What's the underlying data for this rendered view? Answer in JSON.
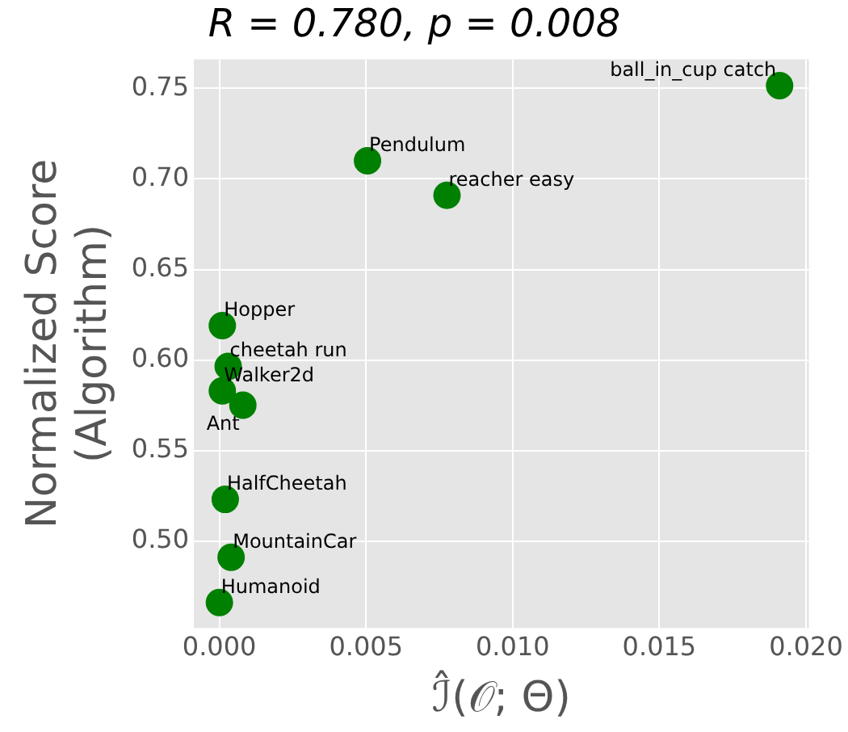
{
  "chart_data": {
    "type": "scatter",
    "title": "R = 0.780, p = 0.008",
    "xlabel": "ℐ̂(𝒪; Θ)",
    "ylabel": "Normalized Score\n(Algorithm)",
    "x": [
      0.0191,
      0.00505,
      0.00776,
      0.0001,
      0.0003,
      0.0001,
      0.0008,
      0.0002,
      0.0004,
      0.0
    ],
    "values": [
      0.7515,
      0.71,
      0.691,
      0.619,
      0.5965,
      0.583,
      0.575,
      0.523,
      0.491,
      0.466
    ],
    "color": "#008000",
    "marker": "circle",
    "annotations": [
      {
        "text": "ball_in_cup catch",
        "x": 0.0191,
        "y": 0.7515
      },
      {
        "text": "Pendulum",
        "x": 0.00505,
        "y": 0.71
      },
      {
        "text": "reacher easy",
        "x": 0.00776,
        "y": 0.691
      },
      {
        "text": "Hopper",
        "x": 0.0001,
        "y": 0.619
      },
      {
        "text": "cheetah run",
        "x": 0.0003,
        "y": 0.5965
      },
      {
        "text": "Walker2d",
        "x": 0.0001,
        "y": 0.583
      },
      {
        "text": "Ant",
        "x": 0.0008,
        "y": 0.575
      },
      {
        "text": "HalfCheetah",
        "x": 0.0002,
        "y": 0.523
      },
      {
        "text": "MountainCar",
        "x": 0.0004,
        "y": 0.491
      },
      {
        "text": "Humanoid",
        "x": 0.0,
        "y": 0.466
      }
    ],
    "xlim": [
      -0.00087,
      0.0201
    ],
    "ylim": [
      0.452,
      0.766
    ],
    "xticks": [
      {
        "value": 0,
        "label": "0.000"
      },
      {
        "value": 0.005,
        "label": "0.005"
      },
      {
        "value": 0.01,
        "label": "0.010"
      },
      {
        "value": 0.015,
        "label": "0.015"
      },
      {
        "value": 0.02,
        "label": "0.020"
      }
    ],
    "yticks": [
      {
        "value": 0.5,
        "label": "0.50"
      },
      {
        "value": 0.55,
        "label": "0.55"
      },
      {
        "value": 0.6,
        "label": "0.60"
      },
      {
        "value": 0.65,
        "label": "0.65"
      },
      {
        "value": 0.7,
        "label": "0.70"
      },
      {
        "value": 0.75,
        "label": "0.75"
      }
    ],
    "grid": true,
    "legend": false
  }
}
